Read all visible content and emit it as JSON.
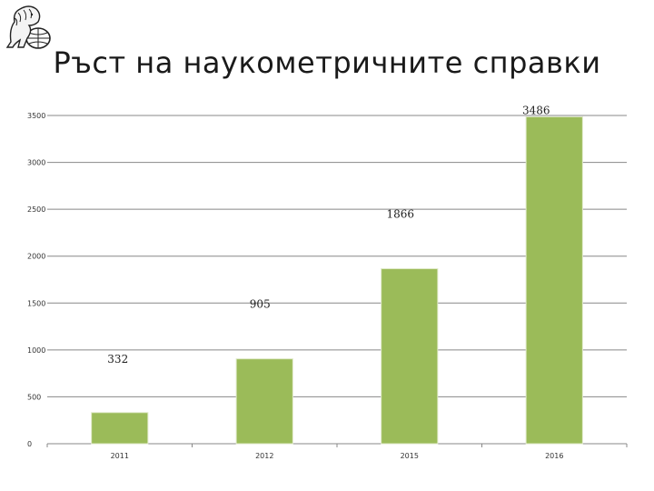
{
  "slide": {
    "title": "Ръст на наукометричните справки"
  },
  "logo": {
    "icon": "lion-globe-logo-icon"
  },
  "colors": {
    "bar": "#9bbb59",
    "grid": "#888888",
    "text": "#333333"
  },
  "chart_data": {
    "type": "bar",
    "title": "",
    "xlabel": "",
    "ylabel": "",
    "categories": [
      "2011",
      "2012",
      "2015",
      "2016"
    ],
    "values": [
      332,
      905,
      1866,
      3486
    ],
    "data_labels": [
      "332",
      "905",
      "1866",
      "3486"
    ],
    "ylim": [
      0,
      3500
    ],
    "yticks": [
      "0",
      "500",
      "1000",
      "1500",
      "2000",
      "2500",
      "3000",
      "3500"
    ],
    "grid": true,
    "legend": "none"
  }
}
